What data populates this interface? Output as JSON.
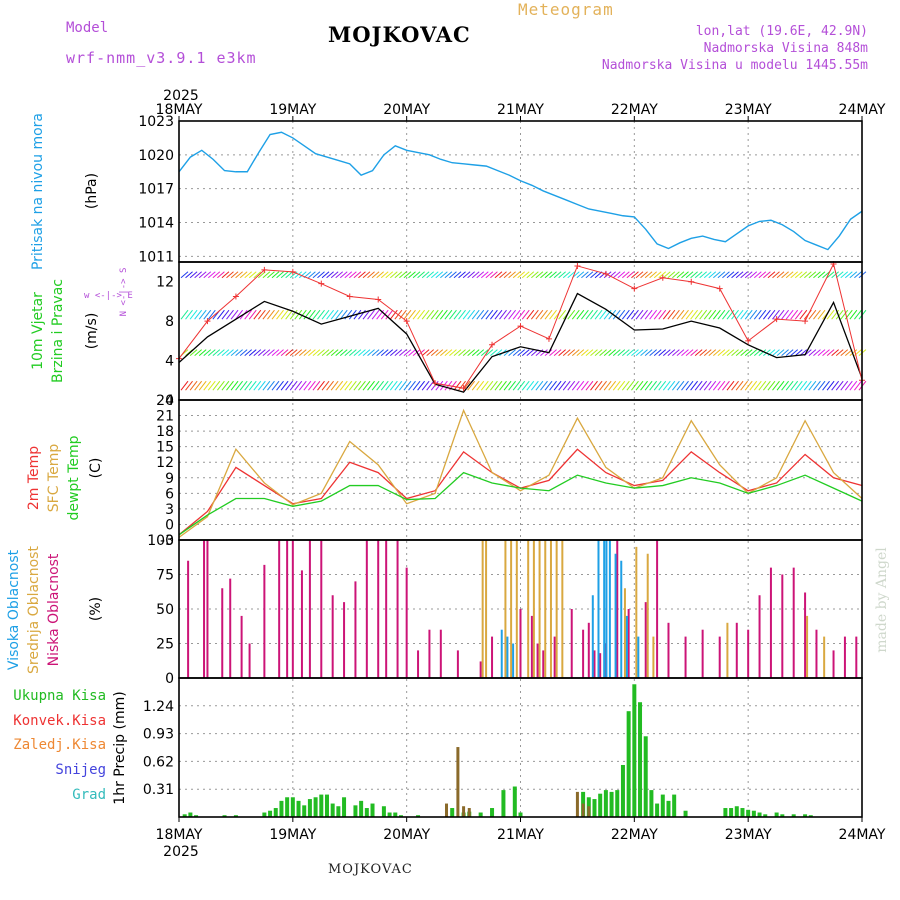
{
  "header": {
    "model_label": "Model",
    "model_name": "wrf-nmm_v3.9.1 e3km",
    "station": "MOJKOVAC",
    "meteogram_title": "Meteogram",
    "lonlat": "lon,lat (19.6E, 42.9N)",
    "elevation": "Nadmorska Visina 848m",
    "model_elevation": "Nadmorska Visina u modelu 1445.55m"
  },
  "footer": {
    "station": "MOJKOVAC",
    "watermark": "made by Angel"
  },
  "colors": {
    "pressure": "#1ea0e6",
    "temp2m": "#ee3333",
    "sfc": "#d9a840",
    "dew": "#22cc22",
    "wind": "#000000",
    "cloud_low": "#cc1477",
    "cloud_mid": "#d9a840",
    "cloud_high": "#1ea0e6",
    "precip": "#22bb22",
    "conv": "#ee3333",
    "frz": "#ee8833",
    "snow": "#4444dd",
    "grad": "#33bbbb",
    "violet": "#b44fd8"
  },
  "chart_data": [
    {
      "type": "line",
      "title": "Pritisak na nivou mora",
      "ylabel": "(hPa)",
      "x_labels": [
        "18MAY",
        "19MAY",
        "20MAY",
        "21MAY",
        "22MAY",
        "23MAY",
        "24MAY"
      ],
      "year_label": "2025",
      "ylim": [
        1010.5,
        1023
      ],
      "yticks": [
        1011,
        1014,
        1017,
        1020,
        1023
      ],
      "x": [
        0,
        0.1,
        0.2,
        0.3,
        0.4,
        0.5,
        0.6,
        0.7,
        0.8,
        0.9,
        1.0,
        1.1,
        1.2,
        1.3,
        1.4,
        1.5,
        1.6,
        1.7,
        1.8,
        1.9,
        2.0,
        2.1,
        2.2,
        2.3,
        2.4,
        2.5,
        2.6,
        2.7,
        2.8,
        2.9,
        3.0,
        3.1,
        3.2,
        3.3,
        3.4,
        3.5,
        3.6,
        3.7,
        3.8,
        3.9,
        4.0,
        4.1,
        4.2,
        4.3,
        4.4,
        4.5,
        4.6,
        4.7,
        4.8,
        4.9,
        5.0,
        5.1,
        5.2,
        5.3,
        5.4,
        5.5,
        5.6,
        5.7,
        5.8,
        5.9,
        6.0
      ],
      "values": [
        1018.5,
        1019.8,
        1020.4,
        1019.6,
        1018.6,
        1018.5,
        1018.5,
        1020.2,
        1021.8,
        1022.0,
        1021.5,
        1020.8,
        1020.1,
        1019.8,
        1019.5,
        1019.2,
        1018.2,
        1018.6,
        1020.0,
        1020.8,
        1020.4,
        1020.2,
        1020.0,
        1019.6,
        1019.3,
        1019.2,
        1019.1,
        1019.0,
        1018.6,
        1018.2,
        1017.7,
        1017.3,
        1016.8,
        1016.4,
        1016.0,
        1015.6,
        1015.2,
        1015.0,
        1014.8,
        1014.6,
        1014.5,
        1013.4,
        1012.1,
        1011.7,
        1012.2,
        1012.6,
        1012.8,
        1012.5,
        1012.3,
        1013.0,
        1013.7,
        1014.1,
        1014.2,
        1013.8,
        1013.2,
        1012.4,
        1012.0,
        1011.6,
        1012.8,
        1014.3,
        1015.0
      ]
    },
    {
      "type": "line",
      "title": "10m Vjetar Brzina i Pravac",
      "ylabel": "(m/s)",
      "compass": "w <-|-> E",
      "compass_ns": "N <-|-> S",
      "ylim": [
        0,
        14
      ],
      "yticks": [
        0,
        4,
        8,
        12
      ],
      "series": [
        {
          "name": "wind speed",
          "x": [
            0,
            0.25,
            0.5,
            0.75,
            1.0,
            1.25,
            1.5,
            1.75,
            2.0,
            2.25,
            2.5,
            2.75,
            3.0,
            3.25,
            3.5,
            3.75,
            4.0,
            4.25,
            4.5,
            4.75,
            5.0,
            5.25,
            5.5,
            5.75,
            6.0
          ],
          "values": [
            3.8,
            6.4,
            8.2,
            10.0,
            9.0,
            7.7,
            8.5,
            9.3,
            6.7,
            1.6,
            0.8,
            4.4,
            5.4,
            4.8,
            10.8,
            9.2,
            7.1,
            7.2,
            8.0,
            7.3,
            5.6,
            4.3,
            4.6,
            9.9,
            2.2
          ]
        },
        {
          "name": "wind gust",
          "x": [
            0,
            0.25,
            0.5,
            0.75,
            1.0,
            1.25,
            1.5,
            1.75,
            2.0,
            2.25,
            2.5,
            2.75,
            3.0,
            3.25,
            3.5,
            3.75,
            4.0,
            4.25,
            4.5,
            4.75,
            5.0,
            5.25,
            5.5,
            5.75,
            6.0
          ],
          "values": [
            4.2,
            8.0,
            10.5,
            13.2,
            13.0,
            11.8,
            10.5,
            10.2,
            8.0,
            1.7,
            1.2,
            5.6,
            7.5,
            6.2,
            13.6,
            12.8,
            11.3,
            12.4,
            12.0,
            11.3,
            6.0,
            8.2,
            8.0,
            13.8,
            2.0
          ]
        }
      ]
    },
    {
      "type": "line",
      "title": "2m Temp / SFC Temp / dewpt Temp",
      "ylabel": "(C)",
      "ylim": [
        -3,
        24
      ],
      "yticks": [
        -3,
        0,
        3,
        6,
        9,
        12,
        15,
        18,
        21,
        24
      ],
      "x": [
        0,
        0.25,
        0.5,
        0.75,
        1.0,
        1.25,
        1.5,
        1.75,
        2.0,
        2.25,
        2.5,
        2.75,
        3.0,
        3.25,
        3.5,
        3.75,
        4.0,
        4.25,
        4.5,
        4.75,
        5.0,
        5.25,
        5.5,
        5.75,
        6.0
      ],
      "series": [
        {
          "name": "2m Temp",
          "values": [
            -2.0,
            2.5,
            11.0,
            7.5,
            4.0,
            5.0,
            12.0,
            10.0,
            5.0,
            6.5,
            14.0,
            10.0,
            7.0,
            8.5,
            14.5,
            10.0,
            7.5,
            8.5,
            14.0,
            10.0,
            6.5,
            8.0,
            13.5,
            9.0,
            7.5
          ]
        },
        {
          "name": "SFC Temp",
          "values": [
            -2.5,
            1.5,
            14.5,
            8.0,
            3.8,
            6.0,
            16.0,
            11.5,
            4.0,
            6.0,
            22.0,
            10.0,
            6.5,
            9.5,
            20.5,
            11.0,
            7.0,
            9.0,
            20.0,
            11.5,
            6.0,
            9.0,
            20.0,
            10.0,
            5.0
          ]
        },
        {
          "name": "dewpt Temp",
          "values": [
            -2.0,
            1.8,
            5.0,
            5.0,
            3.5,
            4.5,
            7.5,
            7.5,
            4.8,
            5.0,
            10.0,
            8.0,
            7.0,
            6.5,
            9.5,
            8.0,
            7.0,
            7.5,
            9.0,
            8.0,
            6.0,
            7.5,
            9.5,
            7.0,
            4.5
          ]
        }
      ]
    },
    {
      "type": "bar",
      "title": "Visoka / Srednja / Niska Oblacnost",
      "ylabel": "(%)",
      "ylim": [
        0,
        100
      ],
      "yticks": [
        0,
        25,
        50,
        75,
        100
      ],
      "series": [
        {
          "name": "Niska Oblacnost",
          "x": [
            0.08,
            0.22,
            0.25,
            0.38,
            0.45,
            0.55,
            0.62,
            0.75,
            0.88,
            0.95,
            1.0,
            1.08,
            1.15,
            1.25,
            1.35,
            1.45,
            1.55,
            1.65,
            1.75,
            1.82,
            1.92,
            2.0,
            2.1,
            2.2,
            2.3,
            2.45,
            2.65,
            2.75,
            3.0,
            3.1,
            3.15,
            3.2,
            3.3,
            3.45,
            3.55,
            3.6,
            3.65,
            3.7,
            3.75,
            3.85,
            3.95,
            4.1,
            4.2,
            4.3,
            4.45,
            4.6,
            4.75,
            4.9,
            5.0,
            5.1,
            5.2,
            5.3,
            5.4,
            5.5,
            5.6,
            5.75,
            5.85,
            5.95
          ],
          "values": [
            85,
            100,
            100,
            65,
            72,
            45,
            25,
            82,
            100,
            100,
            100,
            78,
            100,
            100,
            60,
            55,
            70,
            100,
            100,
            100,
            100,
            80,
            20,
            35,
            35,
            20,
            12,
            30,
            50,
            45,
            25,
            20,
            30,
            50,
            35,
            40,
            20,
            18,
            25,
            100,
            50,
            55,
            100,
            40,
            30,
            35,
            30,
            40,
            35,
            60,
            80,
            75,
            80,
            62,
            35,
            20,
            30,
            30
          ]
        },
        {
          "name": "Srednja Oblacnost",
          "x": [
            2.65,
            2.68,
            2.85,
            2.9,
            2.95,
            3.05,
            3.1,
            3.15,
            3.2,
            3.25,
            3.3,
            3.35,
            3.9,
            4.0,
            4.1,
            4.15,
            4.8,
            5.5,
            5.65
          ],
          "values": [
            100,
            100,
            100,
            100,
            100,
            100,
            100,
            100,
            100,
            100,
            100,
            100,
            65,
            95,
            90,
            30,
            40,
            45,
            30
          ]
        },
        {
          "name": "Visoka Oblacnost",
          "x": [
            2.8,
            2.85,
            2.9,
            3.6,
            3.65,
            3.7,
            3.72,
            3.75,
            3.8,
            3.85,
            3.9,
            4.0
          ],
          "values": [
            35,
            30,
            25,
            60,
            100,
            100,
            100,
            100,
            90,
            85,
            45,
            30
          ]
        }
      ]
    },
    {
      "type": "bar",
      "title": "1hr Precip",
      "ylabel": "1hr Precip (mm)",
      "legend": [
        "Ukupna Kisa",
        "Konvek.Kisa",
        "Zaledj.Kisa",
        "Snijeg",
        "Grad"
      ],
      "ylim": [
        0,
        1.55
      ],
      "yticks": [
        0.31,
        0.62,
        0.93,
        1.24
      ],
      "x_labels": [
        "18MAY",
        "19MAY",
        "20MAY",
        "21MAY",
        "22MAY",
        "23MAY",
        "24MAY"
      ],
      "year_label": "2025",
      "series": [
        {
          "name": "Ukupna Kisa",
          "x": [
            0.05,
            0.1,
            0.15,
            0.4,
            0.5,
            0.75,
            0.8,
            0.85,
            0.9,
            0.95,
            1.0,
            1.05,
            1.1,
            1.15,
            1.2,
            1.25,
            1.3,
            1.35,
            1.4,
            1.45,
            1.55,
            1.6,
            1.65,
            1.7,
            1.8,
            1.85,
            1.9,
            1.95,
            2.1,
            2.4,
            2.5,
            2.55,
            2.65,
            2.75,
            2.85,
            2.95,
            3.0,
            3.55,
            3.6,
            3.65,
            3.7,
            3.75,
            3.8,
            3.85,
            3.9,
            3.95,
            4.0,
            4.05,
            4.1,
            4.15,
            4.2,
            4.25,
            4.3,
            4.35,
            4.45,
            4.8,
            4.85,
            4.9,
            4.95,
            5.0,
            5.05,
            5.1,
            5.15,
            5.25,
            5.3,
            5.4,
            5.5,
            5.55
          ],
          "values": [
            0.03,
            0.05,
            0.02,
            0.02,
            0.02,
            0.05,
            0.07,
            0.1,
            0.18,
            0.22,
            0.22,
            0.18,
            0.13,
            0.2,
            0.22,
            0.25,
            0.25,
            0.15,
            0.12,
            0.22,
            0.13,
            0.18,
            0.1,
            0.15,
            0.12,
            0.05,
            0.05,
            0.02,
            0.02,
            0.1,
            0.05,
            0.06,
            0.05,
            0.1,
            0.3,
            0.34,
            0.05,
            0.28,
            0.22,
            0.2,
            0.26,
            0.3,
            0.28,
            0.3,
            0.58,
            1.18,
            1.48,
            1.28,
            0.9,
            0.3,
            0.15,
            0.25,
            0.18,
            0.25,
            0.07,
            0.1,
            0.1,
            0.12,
            0.1,
            0.08,
            0.07,
            0.05,
            0.03,
            0.05,
            0.03,
            0.03,
            0.03,
            0.02
          ]
        },
        {
          "name": "Konvek.Kisa",
          "x": [
            2.35,
            2.45,
            2.5,
            2.55,
            3.5,
            3.55,
            3.6
          ],
          "values": [
            0.15,
            0.78,
            0.12,
            0.1,
            0.28,
            0.15,
            0.12
          ]
        }
      ]
    }
  ]
}
